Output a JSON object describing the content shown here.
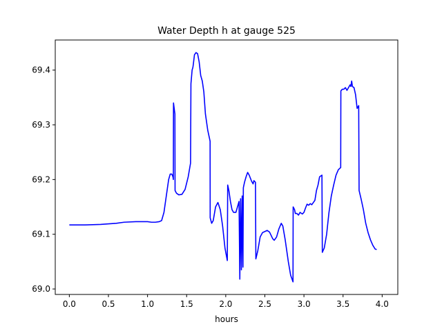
{
  "chart_data": {
    "type": "line",
    "title": "Water Depth h at gauge 525",
    "xlabel": "hours",
    "ylabel": "",
    "xlim": [
      -0.18,
      4.2
    ],
    "ylim": [
      68.99,
      69.455
    ],
    "x_ticks": [
      0.0,
      0.5,
      1.0,
      1.5,
      2.0,
      2.5,
      3.0,
      3.5,
      4.0
    ],
    "x_tick_labels": [
      "0.0",
      "0.5",
      "1.0",
      "1.5",
      "2.0",
      "2.5",
      "3.0",
      "3.5",
      "4.0"
    ],
    "y_ticks": [
      69.0,
      69.1,
      69.2,
      69.3,
      69.4
    ],
    "y_tick_labels": [
      "69.0",
      "69.1",
      "69.2",
      "69.3",
      "69.4"
    ],
    "grid": false,
    "legend": "none",
    "series": [
      {
        "color": "#0000ff",
        "points": [
          [
            0.0,
            69.117
          ],
          [
            0.2,
            69.117
          ],
          [
            0.4,
            69.118
          ],
          [
            0.6,
            69.12
          ],
          [
            0.7,
            69.122
          ],
          [
            0.85,
            69.123
          ],
          [
            1.0,
            69.123
          ],
          [
            1.05,
            69.122
          ],
          [
            1.1,
            69.122
          ],
          [
            1.15,
            69.123
          ],
          [
            1.18,
            69.125
          ],
          [
            1.21,
            69.14
          ],
          [
            1.24,
            69.17
          ],
          [
            1.27,
            69.2
          ],
          [
            1.29,
            69.21
          ],
          [
            1.31,
            69.21
          ],
          [
            1.325,
            69.205
          ],
          [
            1.33,
            69.2
          ],
          [
            1.332,
            69.34
          ],
          [
            1.345,
            69.325
          ],
          [
            1.35,
            69.32
          ],
          [
            1.352,
            69.18
          ],
          [
            1.37,
            69.175
          ],
          [
            1.4,
            69.172
          ],
          [
            1.44,
            69.173
          ],
          [
            1.48,
            69.182
          ],
          [
            1.52,
            69.205
          ],
          [
            1.55,
            69.23
          ],
          [
            1.555,
            69.375
          ],
          [
            1.57,
            69.4
          ],
          [
            1.58,
            69.405
          ],
          [
            1.585,
            69.41
          ],
          [
            1.6,
            69.428
          ],
          [
            1.62,
            69.432
          ],
          [
            1.64,
            69.43
          ],
          [
            1.66,
            69.415
          ],
          [
            1.68,
            69.39
          ],
          [
            1.7,
            69.38
          ],
          [
            1.72,
            69.36
          ],
          [
            1.74,
            69.32
          ],
          [
            1.77,
            69.29
          ],
          [
            1.8,
            69.27
          ],
          [
            1.801,
            69.13
          ],
          [
            1.82,
            69.12
          ],
          [
            1.84,
            69.125
          ],
          [
            1.87,
            69.15
          ],
          [
            1.9,
            69.158
          ],
          [
            1.93,
            69.145
          ],
          [
            1.96,
            69.115
          ],
          [
            1.99,
            69.075
          ],
          [
            2.02,
            69.052
          ],
          [
            2.025,
            69.19
          ],
          [
            2.04,
            69.18
          ],
          [
            2.06,
            69.16
          ],
          [
            2.08,
            69.145
          ],
          [
            2.1,
            69.14
          ],
          [
            2.13,
            69.14
          ],
          [
            2.15,
            69.15
          ],
          [
            2.17,
            69.16
          ],
          [
            2.18,
            69.018
          ],
          [
            2.19,
            69.165
          ],
          [
            2.2,
            69.035
          ],
          [
            2.21,
            69.17
          ],
          [
            2.22,
            69.04
          ],
          [
            2.225,
            69.185
          ],
          [
            2.24,
            69.195
          ],
          [
            2.26,
            69.205
          ],
          [
            2.28,
            69.213
          ],
          [
            2.3,
            69.208
          ],
          [
            2.33,
            69.197
          ],
          [
            2.35,
            69.192
          ],
          [
            2.36,
            69.198
          ],
          [
            2.38,
            69.195
          ],
          [
            2.385,
            69.055
          ],
          [
            2.41,
            69.07
          ],
          [
            2.44,
            69.095
          ],
          [
            2.47,
            69.103
          ],
          [
            2.5,
            69.105
          ],
          [
            2.53,
            69.107
          ],
          [
            2.56,
            69.104
          ],
          [
            2.58,
            69.098
          ],
          [
            2.6,
            69.092
          ],
          [
            2.62,
            69.089
          ],
          [
            2.65,
            69.095
          ],
          [
            2.68,
            69.11
          ],
          [
            2.71,
            69.12
          ],
          [
            2.73,
            69.115
          ],
          [
            2.76,
            69.09
          ],
          [
            2.8,
            69.05
          ],
          [
            2.83,
            69.025
          ],
          [
            2.86,
            69.013
          ],
          [
            2.862,
            69.15
          ],
          [
            2.88,
            69.145
          ],
          [
            2.89,
            69.138
          ],
          [
            2.91,
            69.138
          ],
          [
            2.93,
            69.135
          ],
          [
            2.95,
            69.14
          ],
          [
            2.98,
            69.137
          ],
          [
            3.0,
            69.14
          ],
          [
            3.02,
            69.148
          ],
          [
            3.04,
            69.155
          ],
          [
            3.06,
            69.153
          ],
          [
            3.08,
            69.156
          ],
          [
            3.1,
            69.154
          ],
          [
            3.12,
            69.158
          ],
          [
            3.14,
            69.162
          ],
          [
            3.16,
            69.18
          ],
          [
            3.18,
            69.19
          ],
          [
            3.2,
            69.205
          ],
          [
            3.23,
            69.208
          ],
          [
            3.235,
            69.067
          ],
          [
            3.26,
            69.075
          ],
          [
            3.29,
            69.1
          ],
          [
            3.32,
            69.14
          ],
          [
            3.35,
            69.17
          ],
          [
            3.38,
            69.19
          ],
          [
            3.41,
            69.208
          ],
          [
            3.44,
            69.218
          ],
          [
            3.47,
            69.222
          ],
          [
            3.472,
            69.362
          ],
          [
            3.49,
            69.365
          ],
          [
            3.51,
            69.365
          ],
          [
            3.53,
            69.368
          ],
          [
            3.55,
            69.363
          ],
          [
            3.57,
            69.368
          ],
          [
            3.59,
            69.373
          ],
          [
            3.6,
            69.37
          ],
          [
            3.61,
            69.38
          ],
          [
            3.62,
            69.37
          ],
          [
            3.64,
            69.368
          ],
          [
            3.66,
            69.355
          ],
          [
            3.68,
            69.33
          ],
          [
            3.7,
            69.335
          ],
          [
            3.705,
            69.18
          ],
          [
            3.73,
            69.165
          ],
          [
            3.76,
            69.145
          ],
          [
            3.79,
            69.12
          ],
          [
            3.82,
            69.103
          ],
          [
            3.85,
            69.09
          ],
          [
            3.88,
            69.08
          ],
          [
            3.91,
            69.073
          ],
          [
            3.93,
            69.072
          ]
        ]
      }
    ]
  }
}
